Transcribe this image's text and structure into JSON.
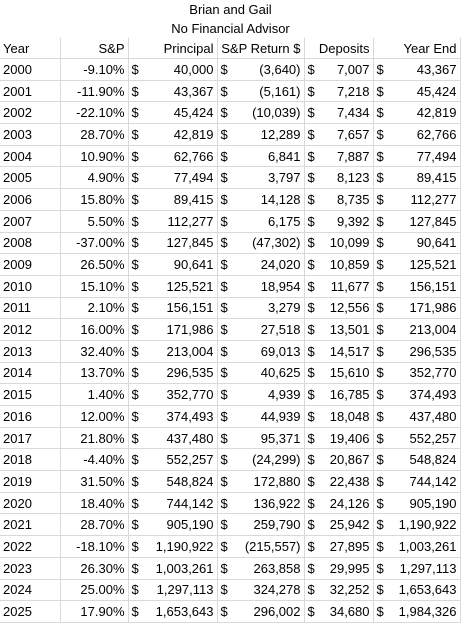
{
  "sheet": {
    "title1": "Brian and Gail",
    "title2": "No Financial Advisor",
    "headers": [
      "Year",
      "S&P",
      "Principal",
      "S&P Return $",
      "Deposits",
      "Year End"
    ],
    "currency_symbol": "$",
    "rows": [
      {
        "year": "2000",
        "sp": "-9.10%",
        "principal": "40,000",
        "ret": "(3,640)",
        "dep": "7,007",
        "end": "43,367"
      },
      {
        "year": "2001",
        "sp": "-11.90%",
        "principal": "43,367",
        "ret": "(5,161)",
        "dep": "7,218",
        "end": "45,424"
      },
      {
        "year": "2002",
        "sp": "-22.10%",
        "principal": "45,424",
        "ret": "(10,039)",
        "dep": "7,434",
        "end": "42,819"
      },
      {
        "year": "2003",
        "sp": "28.70%",
        "principal": "42,819",
        "ret": "12,289",
        "dep": "7,657",
        "end": "62,766"
      },
      {
        "year": "2004",
        "sp": "10.90%",
        "principal": "62,766",
        "ret": "6,841",
        "dep": "7,887",
        "end": "77,494"
      },
      {
        "year": "2005",
        "sp": "4.90%",
        "principal": "77,494",
        "ret": "3,797",
        "dep": "8,123",
        "end": "89,415"
      },
      {
        "year": "2006",
        "sp": "15.80%",
        "principal": "89,415",
        "ret": "14,128",
        "dep": "8,735",
        "end": "112,277"
      },
      {
        "year": "2007",
        "sp": "5.50%",
        "principal": "112,277",
        "ret": "6,175",
        "dep": "9,392",
        "end": "127,845"
      },
      {
        "year": "2008",
        "sp": "-37.00%",
        "principal": "127,845",
        "ret": "(47,302)",
        "dep": "10,099",
        "end": "90,641"
      },
      {
        "year": "2009",
        "sp": "26.50%",
        "principal": "90,641",
        "ret": "24,020",
        "dep": "10,859",
        "end": "125,521"
      },
      {
        "year": "2010",
        "sp": "15.10%",
        "principal": "125,521",
        "ret": "18,954",
        "dep": "11,677",
        "end": "156,151"
      },
      {
        "year": "2011",
        "sp": "2.10%",
        "principal": "156,151",
        "ret": "3,279",
        "dep": "12,556",
        "end": "171,986"
      },
      {
        "year": "2012",
        "sp": "16.00%",
        "principal": "171,986",
        "ret": "27,518",
        "dep": "13,501",
        "end": "213,004"
      },
      {
        "year": "2013",
        "sp": "32.40%",
        "principal": "213,004",
        "ret": "69,013",
        "dep": "14,517",
        "end": "296,535"
      },
      {
        "year": "2014",
        "sp": "13.70%",
        "principal": "296,535",
        "ret": "40,625",
        "dep": "15,610",
        "end": "352,770"
      },
      {
        "year": "2015",
        "sp": "1.40%",
        "principal": "352,770",
        "ret": "4,939",
        "dep": "16,785",
        "end": "374,493"
      },
      {
        "year": "2016",
        "sp": "12.00%",
        "principal": "374,493",
        "ret": "44,939",
        "dep": "18,048",
        "end": "437,480"
      },
      {
        "year": "2017",
        "sp": "21.80%",
        "principal": "437,480",
        "ret": "95,371",
        "dep": "19,406",
        "end": "552,257"
      },
      {
        "year": "2018",
        "sp": "-4.40%",
        "principal": "552,257",
        "ret": "(24,299)",
        "dep": "20,867",
        "end": "548,824"
      },
      {
        "year": "2019",
        "sp": "31.50%",
        "principal": "548,824",
        "ret": "172,880",
        "dep": "22,438",
        "end": "744,142"
      },
      {
        "year": "2020",
        "sp": "18.40%",
        "principal": "744,142",
        "ret": "136,922",
        "dep": "24,126",
        "end": "905,190"
      },
      {
        "year": "2021",
        "sp": "28.70%",
        "principal": "905,190",
        "ret": "259,790",
        "dep": "25,942",
        "end": "1,190,922"
      },
      {
        "year": "2022",
        "sp": "-18.10%",
        "principal": "1,190,922",
        "ret": "(215,557)",
        "dep": "27,895",
        "end": "1,003,261"
      },
      {
        "year": "2023",
        "sp": "26.30%",
        "principal": "1,003,261",
        "ret": "263,858",
        "dep": "29,995",
        "end": "1,297,113"
      },
      {
        "year": "2024",
        "sp": "25.00%",
        "principal": "1,297,113",
        "ret": "324,278",
        "dep": "32,252",
        "end": "1,653,643"
      },
      {
        "year": "2025",
        "sp": "17.90%",
        "principal": "1,653,643",
        "ret": "296,002",
        "dep": "34,680",
        "end": "1,984,326"
      }
    ]
  }
}
